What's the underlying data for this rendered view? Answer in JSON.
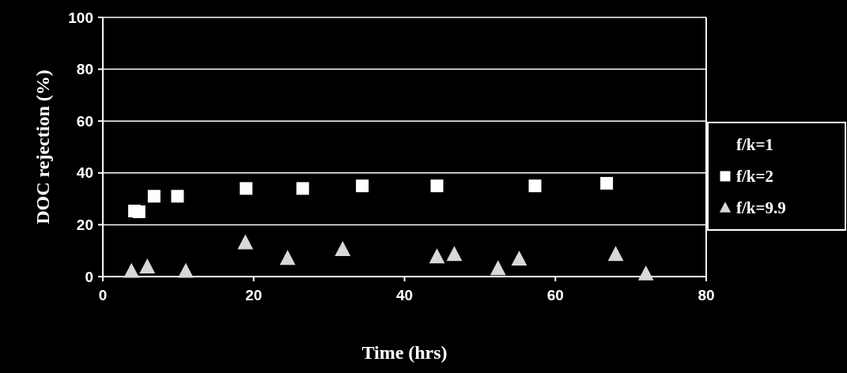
{
  "chart_data": {
    "type": "scatter",
    "xlabel": "Time (hrs)",
    "ylabel": "DOC rejection (%)",
    "xlim": [
      0,
      80
    ],
    "xticks": [
      0,
      20,
      40,
      60,
      80
    ],
    "ylim": [
      0,
      100
    ],
    "yticks": [
      0,
      20,
      40,
      60,
      80,
      100
    ],
    "grid": "y",
    "legend": "right",
    "series": [
      {
        "name": "f/k=1"
      },
      {
        "name": "f/k=2",
        "color": "#ffffff",
        "marker": "square",
        "x": [
          4.2,
          4.8,
          6.8,
          9.9,
          19,
          26.5,
          34.4,
          44.3,
          57.3,
          66.8
        ],
        "values": [
          25.3,
          25,
          31,
          31,
          34,
          34,
          35,
          35,
          35,
          36
        ]
      },
      {
        "name": "f/k=9.9",
        "color": "#d8d8d8",
        "marker": "triangle",
        "x": [
          3.8,
          5.9,
          11,
          18.9,
          24.5,
          31.8,
          44.3,
          46.6,
          52.4,
          55.2,
          68,
          72
        ],
        "values": [
          2,
          3.7,
          2,
          13,
          7,
          10.4,
          7.6,
          8.5,
          3,
          6.7,
          8.5,
          1
        ]
      }
    ]
  }
}
